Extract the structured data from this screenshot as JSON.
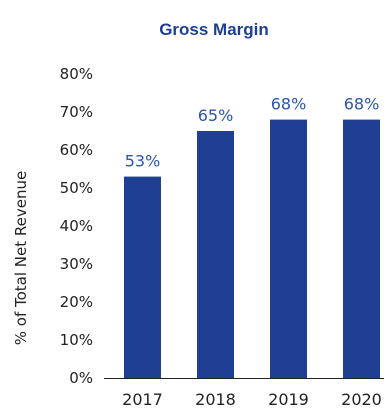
{
  "colors": {
    "bar": "#1f3f93",
    "title": "#1f3f93",
    "data_label": "#2a56a8",
    "axis": "#222222"
  },
  "chart_data": {
    "type": "bar",
    "title": "Gross Margin",
    "xlabel": "",
    "ylabel": "% of Total Net Revenue",
    "categories": [
      "2017",
      "2018",
      "2019",
      "2020"
    ],
    "values": [
      53,
      65,
      68,
      68
    ],
    "data_labels": [
      "53%",
      "65%",
      "68%",
      "68%"
    ],
    "ylim": [
      0,
      80
    ],
    "yticks": [
      0,
      10,
      20,
      30,
      40,
      50,
      60,
      70,
      80
    ],
    "ytick_labels": [
      "0%",
      "10%",
      "20%",
      "30%",
      "40%",
      "50%",
      "60%",
      "70%",
      "80%"
    ],
    "grid": false,
    "legend": "none"
  }
}
